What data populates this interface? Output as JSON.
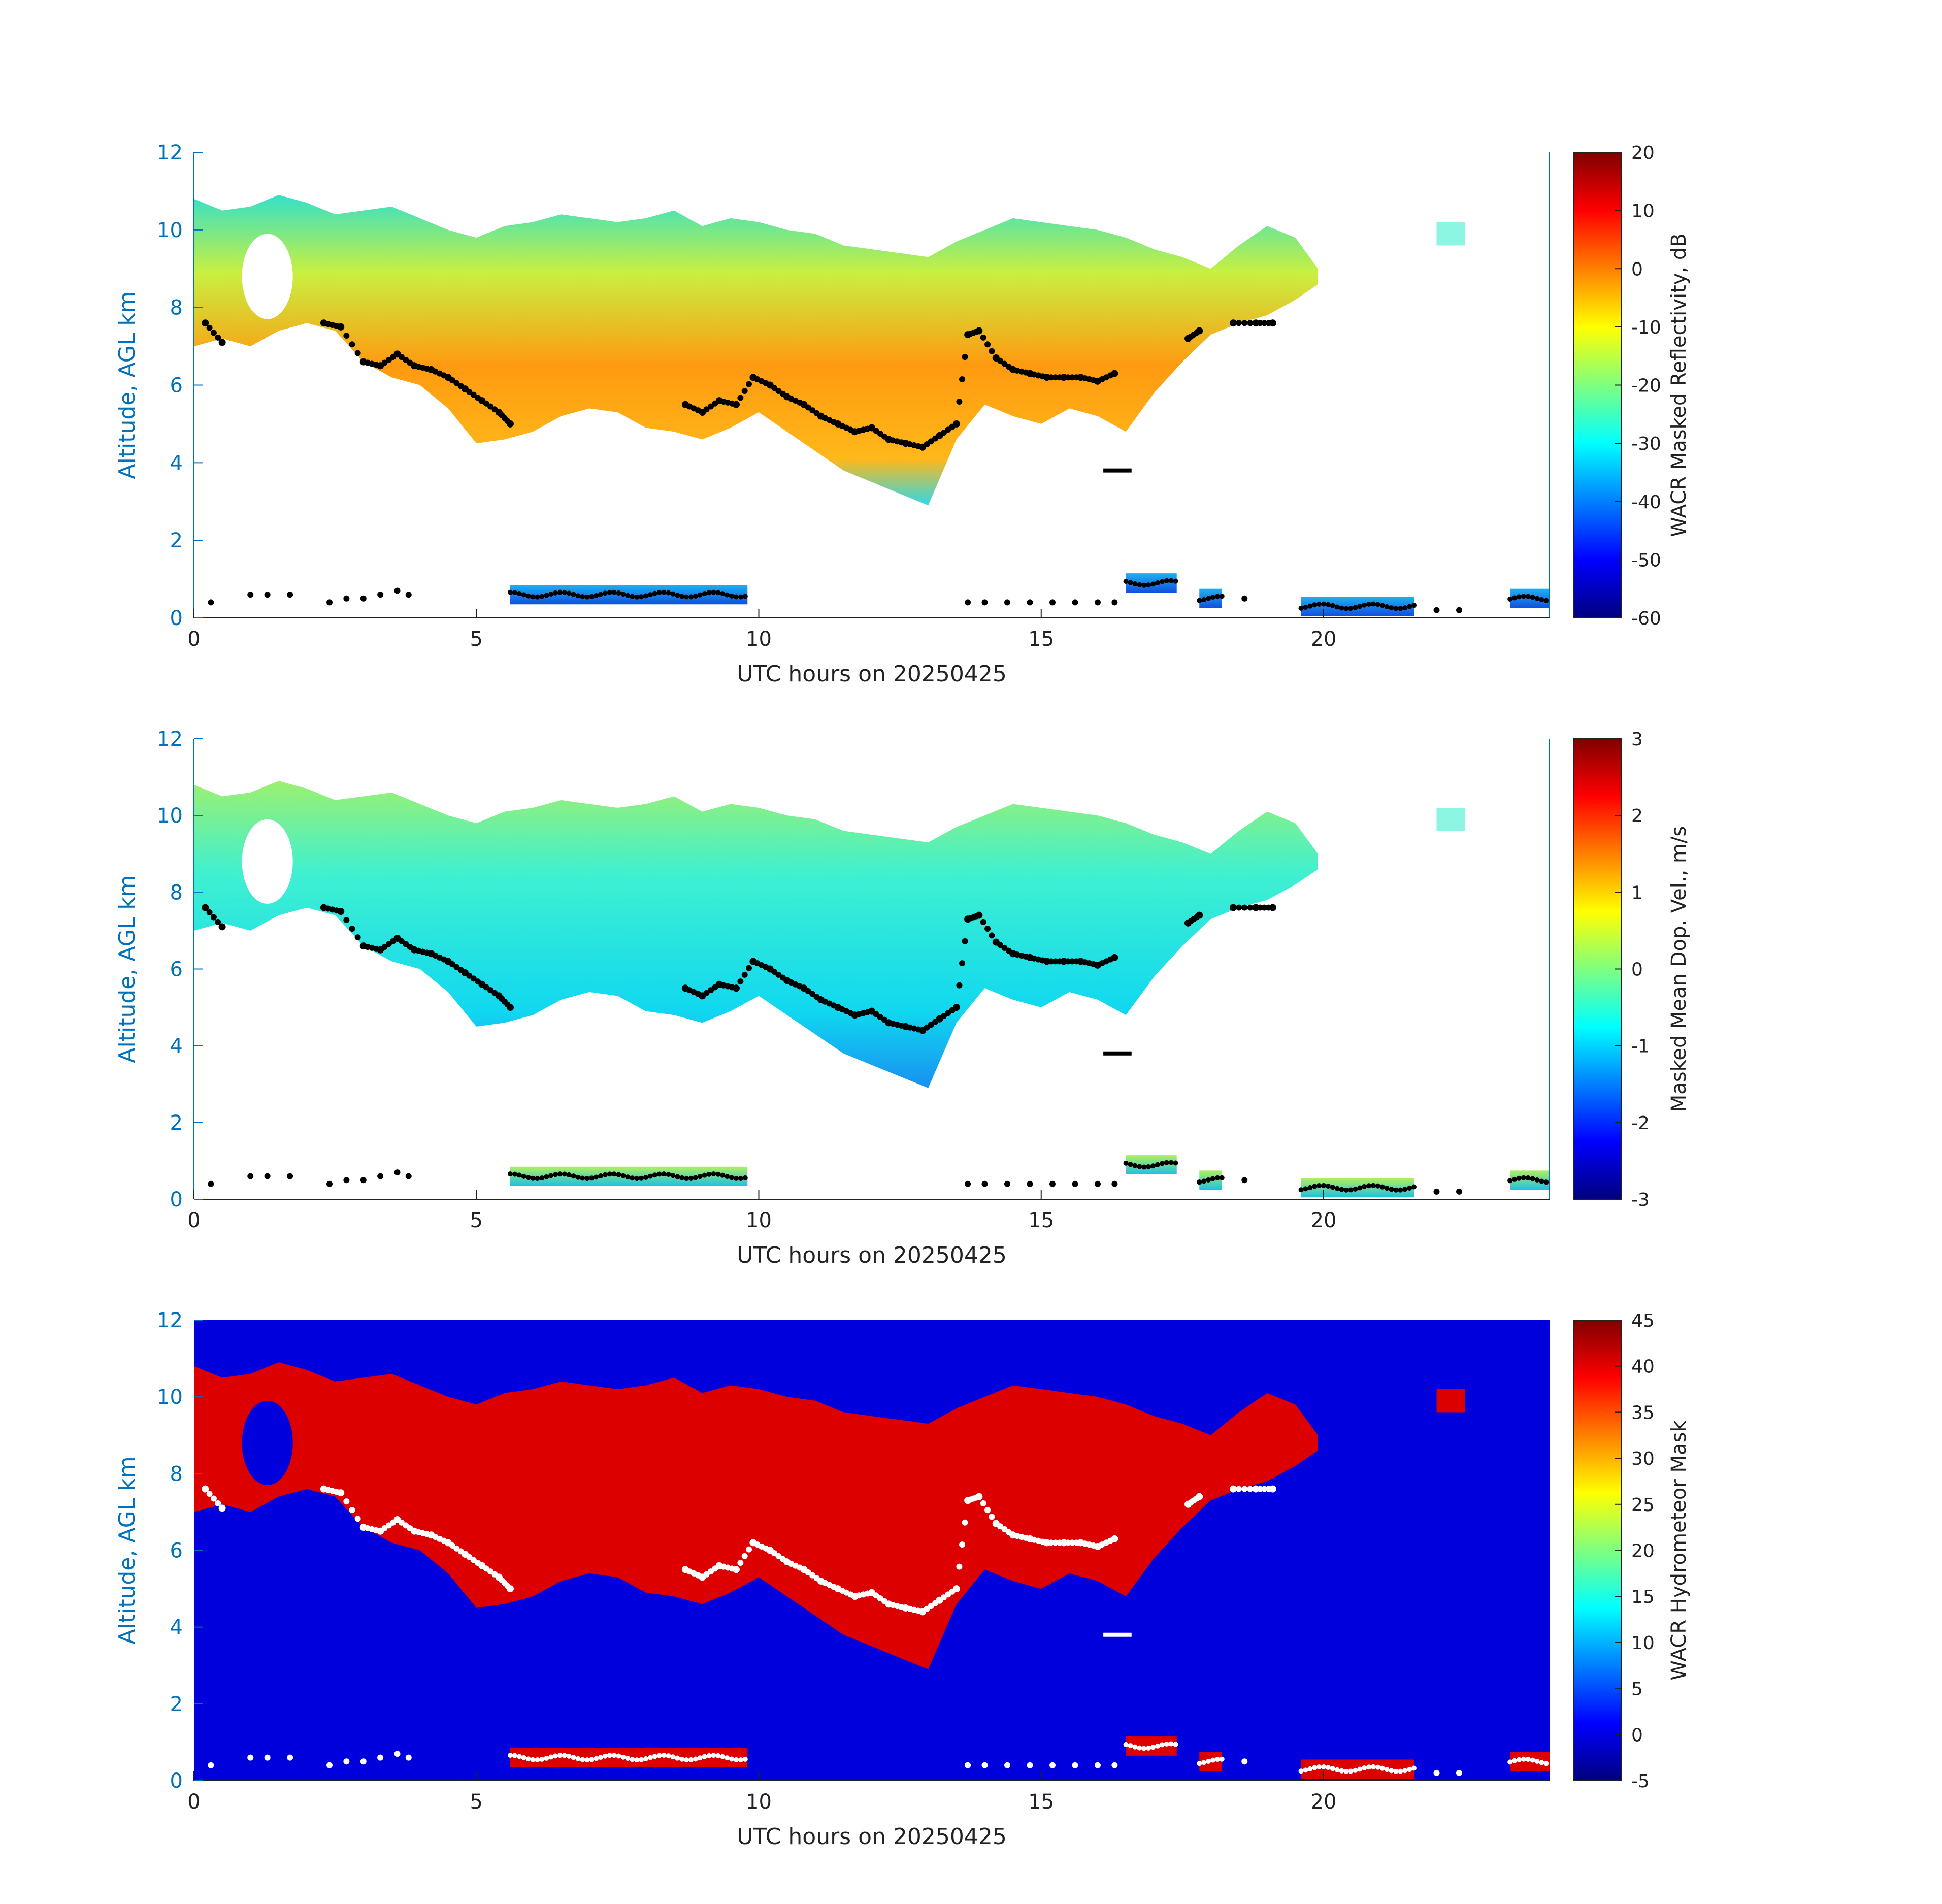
{
  "chart_data": [
    {
      "type": "heatmap",
      "field": "reflectivity",
      "xlabel": "UTC hours on 20250425",
      "ylabel": "Altitude, AGL km",
      "xlim": [
        0,
        24
      ],
      "ylim": [
        0,
        12
      ],
      "xticks": [
        "0",
        "5",
        "10",
        "15",
        "20"
      ],
      "yticks": [
        "0",
        "2",
        "4",
        "6",
        "8",
        "10",
        "12"
      ],
      "colorbar": {
        "label": "WACR Masked Reflectivity, dB",
        "range": [
          -60,
          20
        ],
        "ticks": [
          "-60",
          "-50",
          "-40",
          "-30",
          "-20",
          "-10",
          "0",
          "10",
          "20"
        ],
        "colormap": "jet"
      },
      "cloud_base_points": "black"
    },
    {
      "type": "heatmap",
      "field": "doppler_velocity",
      "xlabel": "UTC hours on 20250425",
      "ylabel": "Altitude, AGL km",
      "xlim": [
        0,
        24
      ],
      "ylim": [
        0,
        12
      ],
      "xticks": [
        "0",
        "5",
        "10",
        "15",
        "20"
      ],
      "yticks": [
        "0",
        "2",
        "4",
        "6",
        "8",
        "10",
        "12"
      ],
      "colorbar": {
        "label": "Masked Mean Dop. Vel., m/s",
        "range": [
          -3,
          3
        ],
        "ticks": [
          "-3",
          "-2",
          "-1",
          "0",
          "1",
          "2",
          "3"
        ],
        "colormap": "jet"
      },
      "cloud_base_points": "black"
    },
    {
      "type": "heatmap",
      "field": "hydrometeor_mask",
      "xlabel": "UTC hours on 20250425",
      "ylabel": "Altitude, AGL km",
      "xlim": [
        0,
        24
      ],
      "ylim": [
        0,
        12
      ],
      "xticks": [
        "0",
        "5",
        "10",
        "15",
        "20"
      ],
      "yticks": [
        "0",
        "2",
        "4",
        "6",
        "8",
        "10",
        "12"
      ],
      "colorbar": {
        "label": "WACR Hydrometeor Mask",
        "range": [
          -5,
          45
        ],
        "ticks": [
          "-5",
          "0",
          "5",
          "10",
          "15",
          "20",
          "25",
          "30",
          "35",
          "40",
          "45"
        ],
        "colormap": "jet"
      },
      "background_color": "#0000dd",
      "fill_color": "#dd0000",
      "cloud_base_points": "white"
    }
  ],
  "cloud_profile": {
    "upper_layer": {
      "x": [
        0,
        0.5,
        1,
        1.5,
        2,
        2.5,
        3,
        3.5,
        4,
        4.5,
        5,
        5.5,
        6,
        6.5,
        7,
        7.5,
        8,
        8.5,
        9,
        9.5,
        10,
        10.5,
        11,
        11.5,
        12,
        12.5,
        13,
        13.5,
        14,
        14.5,
        15,
        15.5,
        16,
        16.5,
        17,
        17.5,
        18,
        18.5,
        19,
        19.5,
        19.9
      ],
      "top": [
        10.8,
        10.5,
        10.6,
        10.9,
        10.7,
        10.4,
        10.5,
        10.6,
        10.3,
        10.0,
        9.8,
        10.1,
        10.2,
        10.4,
        10.3,
        10.2,
        10.3,
        10.5,
        10.1,
        10.3,
        10.2,
        10.0,
        9.9,
        9.6,
        9.5,
        9.4,
        9.3,
        9.7,
        10.0,
        10.3,
        10.2,
        10.1,
        10.0,
        9.8,
        9.5,
        9.3,
        9.0,
        9.6,
        10.1,
        9.8,
        9.0
      ],
      "base": [
        7.0,
        7.2,
        7.0,
        7.4,
        7.6,
        7.4,
        6.6,
        6.2,
        6.0,
        5.4,
        4.5,
        4.6,
        4.8,
        5.2,
        5.4,
        5.3,
        4.9,
        4.8,
        4.6,
        4.9,
        5.3,
        4.8,
        4.3,
        3.8,
        3.5,
        3.2,
        2.9,
        4.6,
        5.5,
        5.2,
        5.0,
        5.4,
        5.2,
        4.8,
        5.8,
        6.6,
        7.3,
        7.6,
        7.8,
        8.2,
        8.6
      ]
    },
    "cloud_base_heights": {
      "x": [
        0.2,
        0.5,
        2.3,
        2.6,
        3.0,
        3.3,
        3.6,
        3.9,
        4.2,
        4.5,
        4.8,
        5.1,
        5.4,
        5.6,
        8.7,
        9.0,
        9.3,
        9.6,
        9.9,
        10.2,
        10.5,
        10.8,
        11.1,
        11.4,
        11.7,
        12.0,
        12.3,
        12.6,
        12.9,
        13.2,
        13.5,
        13.7,
        13.9,
        14.2,
        14.5,
        14.8,
        15.1,
        15.4,
        15.7,
        16.0,
        16.3,
        17.6,
        17.8,
        18.4,
        18.8,
        19.1
      ],
      "y": [
        7.6,
        7.1,
        7.6,
        7.5,
        6.6,
        6.5,
        6.8,
        6.5,
        6.4,
        6.2,
        5.9,
        5.6,
        5.3,
        5.0,
        5.5,
        5.3,
        5.6,
        5.5,
        6.2,
        6.0,
        5.7,
        5.5,
        5.2,
        5.0,
        4.8,
        4.9,
        4.6,
        4.5,
        4.4,
        4.7,
        5.0,
        7.3,
        7.4,
        6.7,
        6.4,
        6.3,
        6.2,
        6.2,
        6.2,
        6.1,
        6.3,
        7.2,
        7.4,
        7.6,
        7.6,
        7.6
      ]
    },
    "low_layer_segments": [
      {
        "x0": 5.6,
        "x1": 9.8,
        "y": 0.6
      },
      {
        "x0": 16.5,
        "x1": 17.4,
        "y": 0.9
      },
      {
        "x0": 17.8,
        "x1": 18.2,
        "y": 0.5
      },
      {
        "x0": 19.6,
        "x1": 21.6,
        "y": 0.3
      },
      {
        "x0": 23.3,
        "x1": 24.0,
        "y": 0.5
      }
    ],
    "low_points": {
      "x": [
        0.3,
        1.0,
        1.3,
        1.7,
        2.4,
        2.7,
        3.0,
        3.3,
        3.6,
        3.8,
        13.7,
        14.0,
        14.4,
        14.8,
        15.2,
        15.6,
        16.0,
        16.3,
        18.6,
        22.0,
        22.4
      ],
      "y": [
        0.4,
        0.6,
        0.6,
        0.6,
        0.4,
        0.5,
        0.5,
        0.6,
        0.7,
        0.6,
        0.4,
        0.4,
        0.4,
        0.4,
        0.4,
        0.4,
        0.4,
        0.4,
        0.5,
        0.2,
        0.2
      ]
    },
    "isolated_echo": {
      "x": [
        22.0,
        22.4
      ],
      "y0": 9.6,
      "y1": 10.2
    },
    "small_feature": {
      "x0": 16.1,
      "x1": 16.6,
      "y": 3.8
    }
  }
}
